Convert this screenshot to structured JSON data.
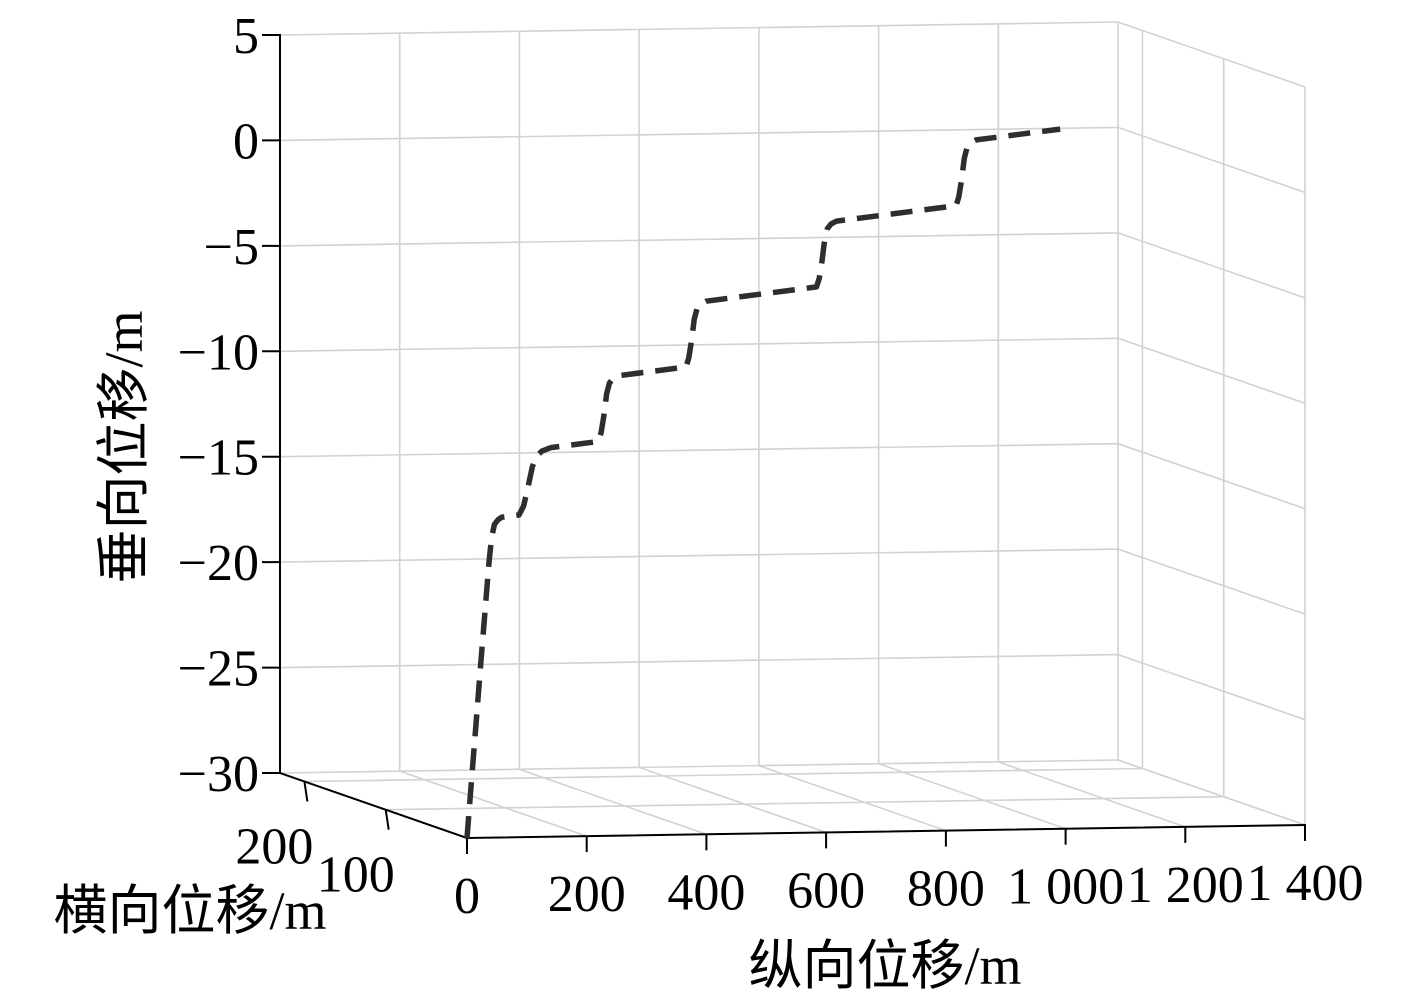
{
  "chart_data": {
    "type": "line",
    "plot_3d": true,
    "xlabel": "纵向位移/m",
    "ylabel": "横向位移/m",
    "zlabel": "垂向位移/m",
    "xlim": [
      0,
      1400
    ],
    "ylim": [
      0,
      230
    ],
    "zlim": [
      -30,
      5
    ],
    "x_ticks": [
      0,
      200,
      400,
      600,
      800,
      1000,
      1200,
      1400
    ],
    "x_tick_labels": [
      "0",
      "200",
      "400",
      "600",
      "800",
      "1 000",
      "1 200",
      "1 400"
    ],
    "y_ticks": [
      100,
      200
    ],
    "y_tick_labels": [
      "100",
      "200"
    ],
    "z_ticks": [
      5,
      0,
      -5,
      -10,
      -15,
      -20,
      -25,
      -30
    ],
    "z_tick_labels": [
      "5",
      "0",
      "−5",
      "−10",
      "−15",
      "−20",
      "−25",
      "−30"
    ],
    "grid": true,
    "series": [
      {
        "dashed": true,
        "color": "#2e2e2e",
        "x": [
          0,
          10,
          20,
          30,
          40,
          48,
          54,
          60,
          68,
          76,
          114,
          124,
          133,
          143,
          152,
          165,
          184,
          288,
          294,
          300,
          306,
          312,
          320,
          332,
          480,
          486,
          492,
          498,
          504,
          512,
          524,
          766,
          772,
          778,
          784,
          790,
          798,
          810,
          1072,
          1078,
          1084,
          1090,
          1096,
          1104,
          1116,
          1300
        ],
        "y": [
          0,
          1.8,
          3.5,
          5.3,
          7.0,
          8.4,
          9.5,
          10.5,
          11.9,
          13.3,
          20.0,
          21.7,
          23.3,
          25.0,
          26.6,
          28.9,
          32.2,
          50.4,
          51.5,
          52.5,
          53.6,
          54.6,
          56.0,
          58.1,
          84.0,
          85.1,
          86.1,
          87.2,
          88.2,
          89.6,
          91.7,
          134.1,
          135.1,
          136.2,
          137.2,
          138.3,
          139.7,
          141.8,
          187.6,
          188.7,
          189.7,
          190.8,
          191.8,
          193.2,
          195.3,
          227.5
        ],
        "z": [
          -30,
          -27.3,
          -24.6,
          -21.9,
          -19.2,
          -17.1,
          -15.9,
          -15.3,
          -15.1,
          -15.0,
          -15.0,
          -14.6,
          -13.8,
          -12.8,
          -12.3,
          -12.1,
          -12.0,
          -12.0,
          -11.6,
          -10.8,
          -9.8,
          -9.3,
          -9.1,
          -9.0,
          -9.0,
          -8.6,
          -7.8,
          -6.8,
          -6.3,
          -6.1,
          -6.0,
          -6.0,
          -5.6,
          -4.8,
          -3.8,
          -3.3,
          -3.1,
          -3.0,
          -3.0,
          -2.6,
          -1.8,
          -0.8,
          -0.3,
          -0.1,
          0.0,
          0.0
        ]
      }
    ]
  }
}
